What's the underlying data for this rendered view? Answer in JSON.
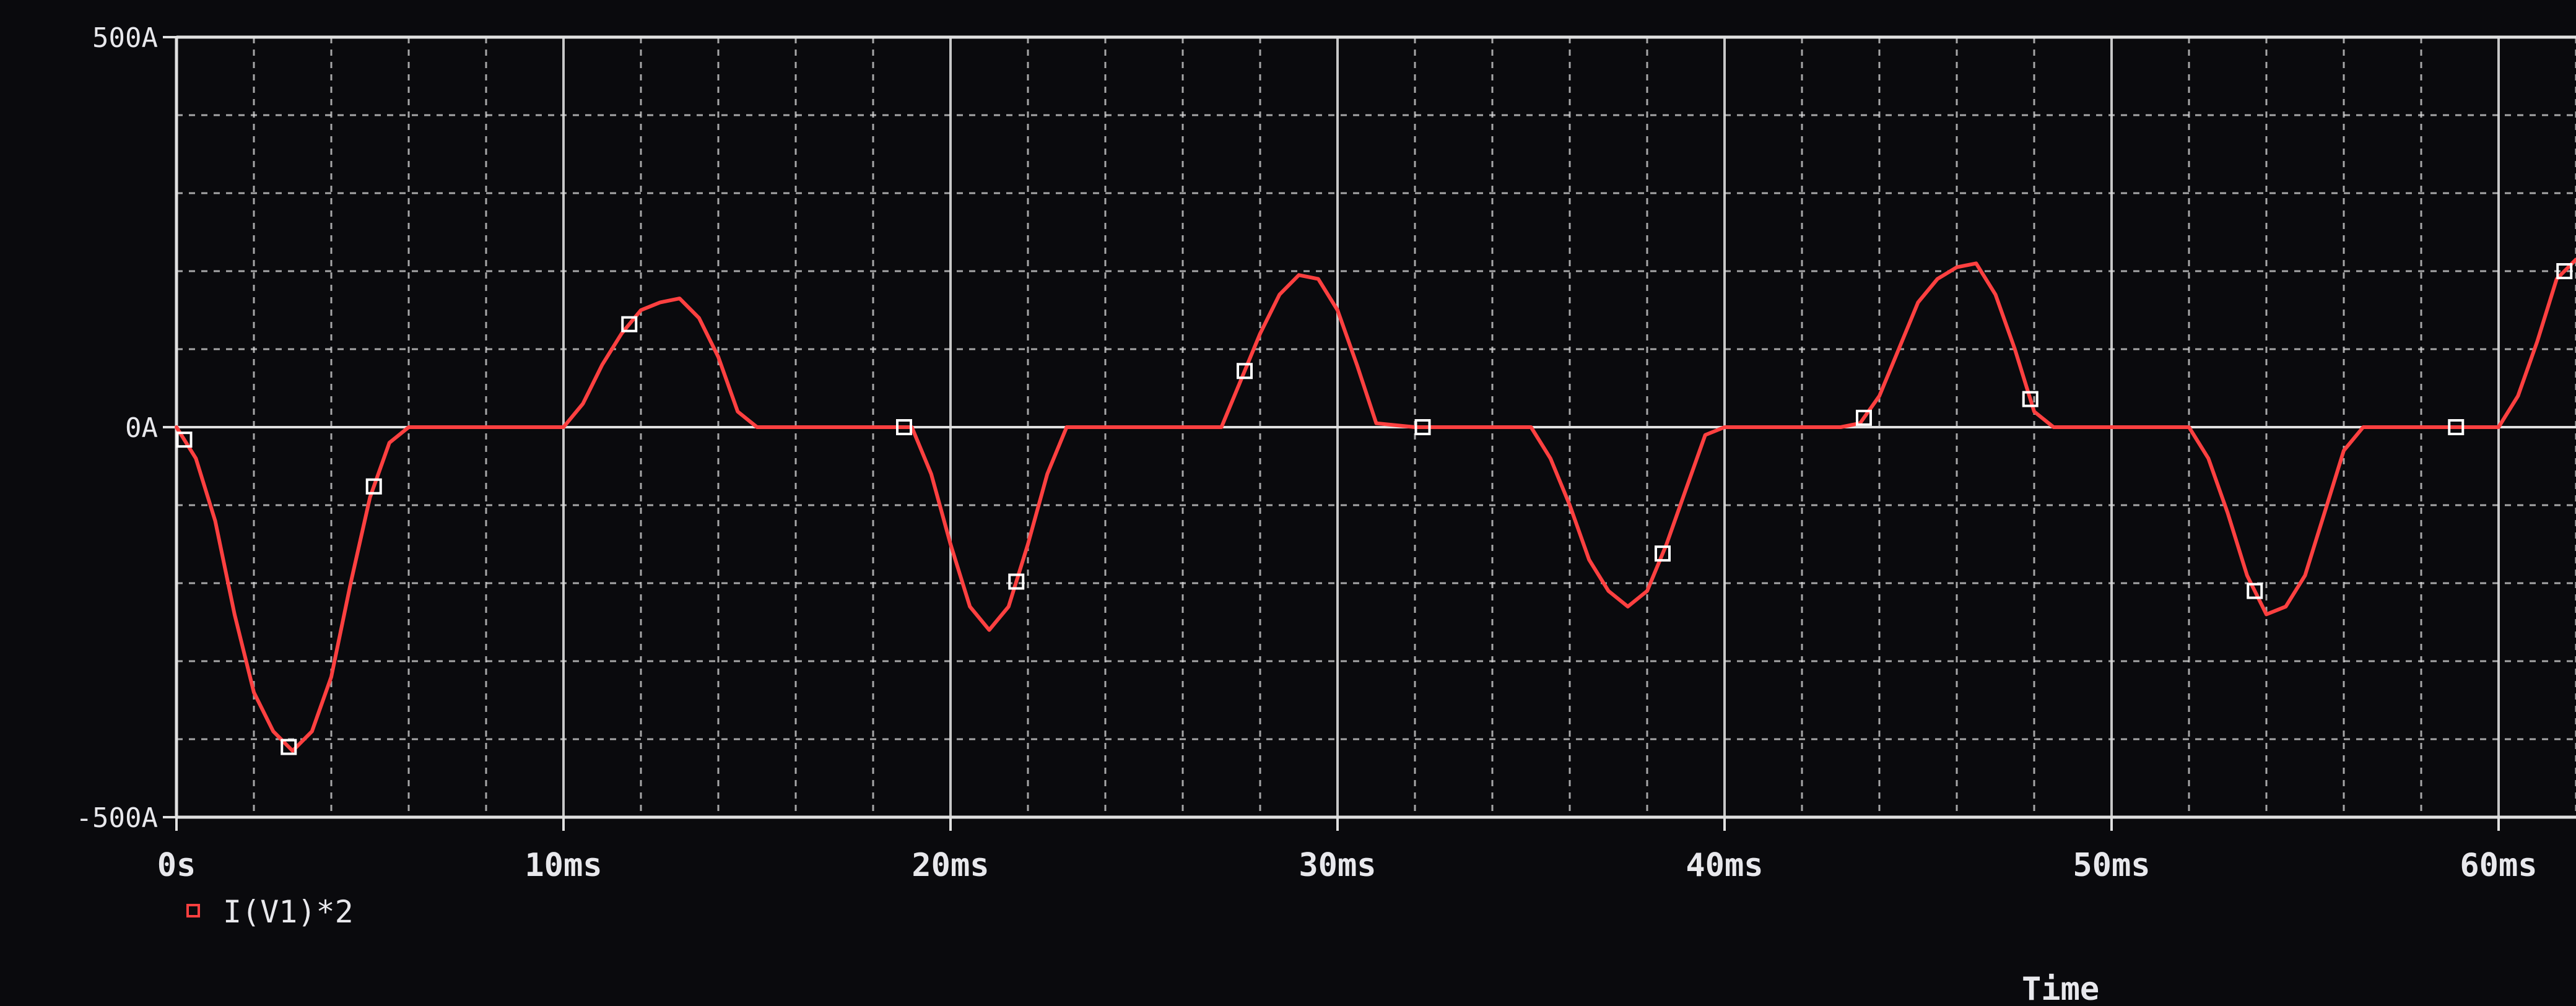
{
  "window": {
    "background": "#0a0a0d"
  },
  "chart_data": {
    "type": "line",
    "title": "",
    "xlabel": "Time",
    "ylabel": "",
    "xlim": [
      0,
      62
    ],
    "ylim": [
      -500,
      500
    ],
    "x_unit": "ms",
    "y_unit": "A",
    "x_ticks": [
      {
        "value": 0,
        "label": "0s"
      },
      {
        "value": 10,
        "label": "10ms"
      },
      {
        "value": 20,
        "label": "20ms"
      },
      {
        "value": 30,
        "label": "30ms"
      },
      {
        "value": 40,
        "label": "40ms"
      },
      {
        "value": 50,
        "label": "50ms"
      },
      {
        "value": 60,
        "label": "60ms"
      }
    ],
    "y_ticks": [
      {
        "value": 500,
        "label": "500A"
      },
      {
        "value": 0,
        "label": "0A"
      },
      {
        "value": -500,
        "label": "-500A"
      }
    ],
    "grid": true,
    "grid_x_minor_per_major": 5,
    "grid_y_step": 100,
    "legend_position": "bottom-left",
    "colors": {
      "background": "#0a0a0d",
      "grid": "#dcdcdc",
      "axis": "#e0e0e0",
      "trace": "#ff4040",
      "marker": "#ffffff",
      "text": "#e8e8ec"
    },
    "series": [
      {
        "name": "I(V1)*2",
        "color": "#ff4040",
        "marker": "square",
        "x": [
          0,
          0.5,
          1.0,
          1.5,
          2.0,
          2.5,
          3.0,
          3.5,
          4.0,
          4.5,
          5.0,
          5.5,
          6.0,
          7.0,
          8.0,
          9.0,
          10.0,
          10.5,
          11.0,
          11.5,
          12.0,
          12.5,
          13.0,
          13.5,
          14.0,
          14.5,
          15.0,
          16.0,
          17.0,
          18.0,
          19.0,
          19.5,
          20.0,
          20.5,
          21.0,
          21.5,
          22.0,
          22.5,
          23.0,
          24.0,
          25.0,
          26.0,
          27.0,
          27.5,
          28.0,
          28.5,
          29.0,
          29.5,
          30.0,
          30.5,
          31.0,
          32.0,
          33.0,
          34.0,
          35.0,
          35.5,
          36.0,
          36.5,
          37.0,
          37.5,
          38.0,
          38.5,
          39.0,
          39.5,
          40.0,
          41.0,
          42.0,
          43.0,
          43.5,
          44.0,
          44.5,
          45.0,
          45.5,
          46.0,
          46.5,
          47.0,
          47.5,
          48.0,
          48.5,
          49.0,
          50.0,
          51.0,
          52.0,
          52.5,
          53.0,
          53.5,
          54.0,
          54.5,
          55.0,
          55.5,
          56.0,
          56.5,
          57.0,
          58.0,
          59.0,
          60.0,
          60.5,
          61.0,
          61.5,
          62.0
        ],
        "y": [
          0,
          -40,
          -120,
          -240,
          -340,
          -390,
          -415,
          -390,
          -320,
          -200,
          -90,
          -20,
          0,
          0,
          0,
          0,
          0,
          30,
          80,
          120,
          150,
          160,
          165,
          140,
          90,
          20,
          0,
          0,
          0,
          0,
          0,
          -60,
          -150,
          -230,
          -260,
          -230,
          -150,
          -60,
          0,
          0,
          0,
          0,
          0,
          60,
          120,
          170,
          195,
          190,
          150,
          80,
          5,
          0,
          0,
          0,
          0,
          -40,
          -100,
          -170,
          -210,
          -230,
          -210,
          -150,
          -80,
          -10,
          0,
          0,
          0,
          0,
          5,
          40,
          100,
          160,
          190,
          205,
          210,
          170,
          100,
          20,
          0,
          0,
          0,
          0,
          0,
          -40,
          -110,
          -190,
          -240,
          -230,
          -190,
          -110,
          -30,
          0,
          0,
          0,
          0,
          0,
          40,
          110,
          190,
          215
        ]
      }
    ],
    "marker_x": [
      0.2,
      2.9,
      5.1,
      11.7,
      18.8,
      21.7,
      27.6,
      32.2,
      38.4,
      43.6,
      47.9,
      53.7,
      58.9,
      61.7
    ]
  },
  "legend": {
    "label": "I(V1)*2"
  }
}
